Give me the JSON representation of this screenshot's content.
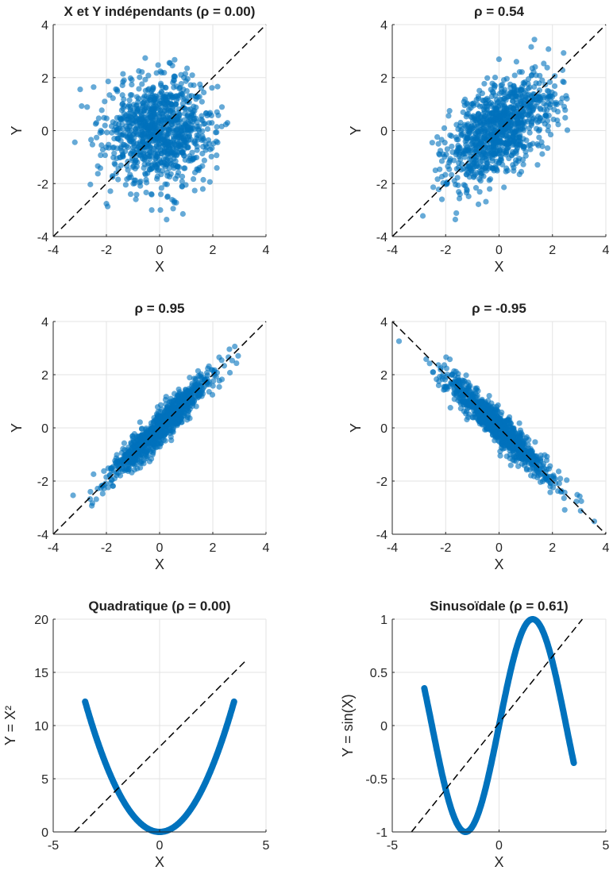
{
  "chart_data": [
    {
      "type": "scatter",
      "title": "X et Y indépendants (ρ = 0.00)",
      "rho": 0.0,
      "xlabel": "X",
      "ylabel": "Y",
      "xlim": [
        -4,
        4
      ],
      "ylim": [
        -4,
        4
      ],
      "xticks": [
        -4,
        -2,
        0,
        2,
        4
      ],
      "yticks": [
        -4,
        -2,
        0,
        2,
        4
      ],
      "reference_line": [
        [
          -4,
          -4
        ],
        [
          4,
          4
        ]
      ],
      "grid": true,
      "color": "#0072BD"
    },
    {
      "type": "scatter",
      "title": "ρ = 0.54",
      "rho": 0.54,
      "xlabel": "X",
      "ylabel": "Y",
      "xlim": [
        -4,
        4
      ],
      "ylim": [
        -4,
        4
      ],
      "xticks": [
        -4,
        -2,
        0,
        2,
        4
      ],
      "yticks": [
        -4,
        -2,
        0,
        2,
        4
      ],
      "reference_line": [
        [
          -4,
          -4
        ],
        [
          4,
          4
        ]
      ],
      "grid": true,
      "color": "#0072BD"
    },
    {
      "type": "scatter",
      "title": "ρ = 0.95",
      "rho": 0.95,
      "xlabel": "X",
      "ylabel": "Y",
      "xlim": [
        -4,
        4
      ],
      "ylim": [
        -4,
        4
      ],
      "xticks": [
        -4,
        -2,
        0,
        2,
        4
      ],
      "yticks": [
        -4,
        -2,
        0,
        2,
        4
      ],
      "reference_line": [
        [
          -4,
          -4
        ],
        [
          4,
          4
        ]
      ],
      "grid": true,
      "color": "#0072BD"
    },
    {
      "type": "scatter",
      "title": "ρ = -0.95",
      "rho": -0.95,
      "xlabel": "X",
      "ylabel": "Y",
      "xlim": [
        -4,
        4
      ],
      "ylim": [
        -4,
        4
      ],
      "xticks": [
        -4,
        -2,
        0,
        2,
        4
      ],
      "yticks": [
        -4,
        -2,
        0,
        2,
        4
      ],
      "reference_line": [
        [
          -4,
          4
        ],
        [
          4,
          -4
        ]
      ],
      "grid": true,
      "color": "#0072BD"
    },
    {
      "type": "line",
      "title": "Quadratique (ρ = 0.00)",
      "function": "x^2",
      "x_range": [
        -3.5,
        3.5
      ],
      "xlabel": "X",
      "ylabel": "Y = X²",
      "xlim": [
        -5,
        5
      ],
      "ylim": [
        0,
        20
      ],
      "xticks": [
        -5,
        0,
        5
      ],
      "yticks": [
        0,
        5,
        10,
        15,
        20
      ],
      "reference_line": [
        [
          -4,
          0
        ],
        [
          4,
          16
        ]
      ],
      "grid": true,
      "color": "#0072BD"
    },
    {
      "type": "line",
      "title": "Sinusoïdale (ρ = 0.61)",
      "function": "sin(x)",
      "x_range": [
        -3.5,
        3.5
      ],
      "xlabel": "X",
      "ylabel": "Y = sin(X)",
      "xlim": [
        -5,
        5
      ],
      "ylim": [
        -1,
        1
      ],
      "xticks": [
        -5,
        0,
        5
      ],
      "yticks": [
        -1,
        -0.5,
        0,
        0.5,
        1
      ],
      "reference_line": [
        [
          -4.1,
          -1
        ],
        [
          3.9,
          1
        ]
      ],
      "grid": true,
      "color": "#0072BD"
    }
  ]
}
